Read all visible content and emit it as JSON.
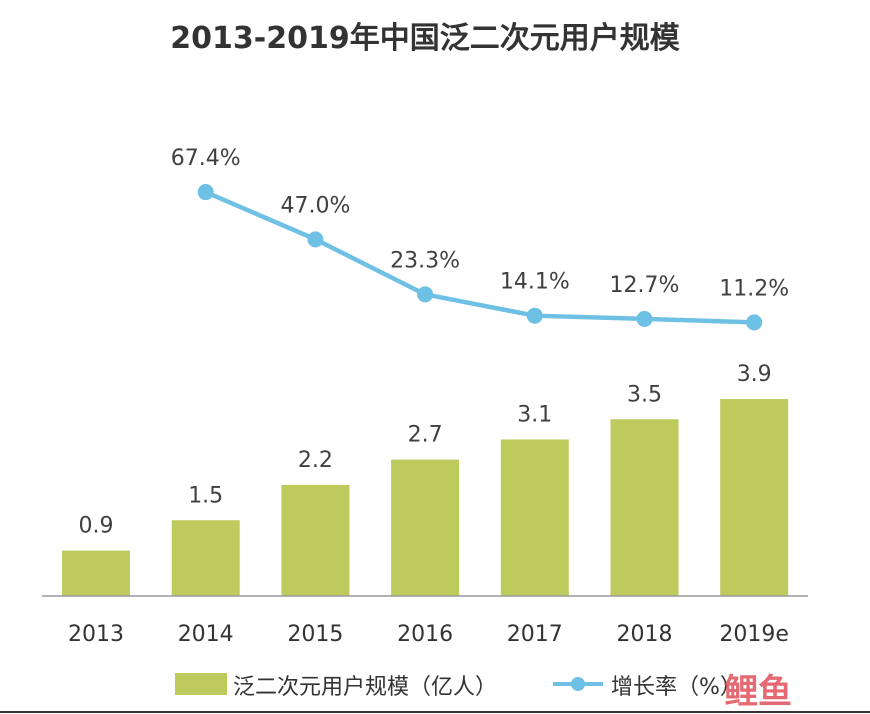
{
  "chart_data": {
    "title": "2013-2019年中国泛二次元用户规模",
    "type": "bar",
    "categories": [
      "2013",
      "2014",
      "2015",
      "2016",
      "2017",
      "2018",
      "2019e"
    ],
    "series": [
      {
        "name": "泛二次元用户规模（亿人）",
        "type": "bar",
        "values": [
          0.9,
          1.5,
          2.2,
          2.7,
          3.1,
          3.5,
          3.9
        ],
        "labels": [
          "0.9",
          "1.5",
          "2.2",
          "2.7",
          "3.1",
          "3.5",
          "3.9"
        ],
        "color": "#bccb5c"
      },
      {
        "name": "增长率（%）",
        "type": "line",
        "values": [
          null,
          67.4,
          47.0,
          23.3,
          14.1,
          12.7,
          11.2
        ],
        "labels": [
          "",
          "67.4%",
          "47.0%",
          "23.3%",
          "14.1%",
          "12.7%",
          "11.2%"
        ],
        "color": "#6ec1e4"
      }
    ],
    "legend": {
      "placement": "bottom"
    },
    "grid": false
  },
  "watermark": "鲤鱼"
}
